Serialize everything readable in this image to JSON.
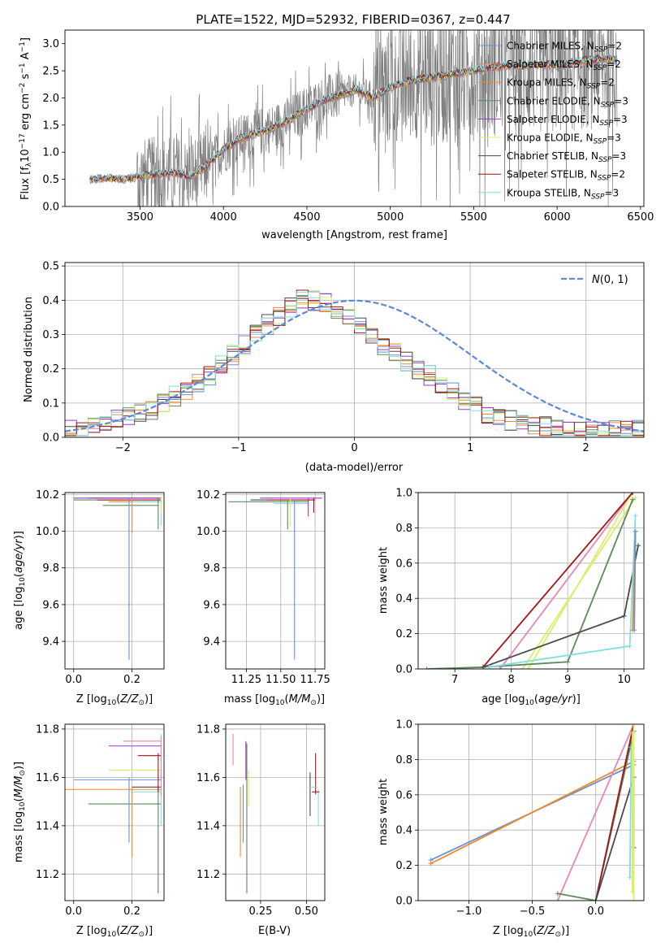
{
  "title": "PLATE=1522, MJD=52932, FIBERID=0367, z=0.447",
  "colors": {
    "chabrier_miles": "#6b8fd6",
    "salpeter_miles": "#e0876a",
    "kroupa_miles": "#f08a24",
    "chabrier_elodie": "#5b8a5b",
    "salpeter_elodie": "#9c38c7",
    "kroupa_elodie": "#d9ef6a",
    "chabrier_stelib": "#4a4a4a",
    "salpeter_stelib": "#a0151a",
    "kroupa_stelib": "#83dede",
    "data": "#808080",
    "normal": "#5b88d9",
    "pink": "#e884b8",
    "lime": "#d9ef6a"
  },
  "chart_data": [
    {
      "type": "line",
      "xlabel": "wavelength [Angstrom, rest frame]",
      "ylabel": "Flux [f_λ10^-17 erg cm^-2 s^-1 A^-1]",
      "xlim": [
        3050,
        6520
      ],
      "ylim": [
        0,
        3.25
      ],
      "xticks": [
        3500,
        4000,
        4500,
        5000,
        5500,
        6000,
        6500
      ],
      "yticks": [
        0.0,
        0.5,
        1.0,
        1.5,
        2.0,
        2.5,
        3.0
      ],
      "grid": false,
      "legend_position": "top-right",
      "legend": [
        "Chabrier MILES, N_SSP=2",
        "Salpeter MILES, N_SSP=2",
        "Kroupa MILES, N_SSP=2",
        "Chabrier ELODIE, N_SSP=3",
        "Salpeter ELODIE, N_SSP=3",
        "Kroupa ELODIE, N_SSP=3",
        "Chabrier STELIB, N_SSP=3",
        "Salpeter STELIB, N_SSP=2",
        "Kroupa STELIB, N_SSP=3"
      ],
      "model_continuum": {
        "x": [
          3200,
          3300,
          3400,
          3500,
          3600,
          3700,
          3800,
          3900,
          4000,
          4100,
          4200,
          4300,
          4400,
          4500,
          4600,
          4700,
          4800,
          4900,
          5000,
          5100,
          5200,
          5300,
          5400,
          5500,
          5600,
          5700,
          5800,
          5900,
          6000,
          6100,
          6200,
          6300,
          6350
        ],
        "y": [
          0.5,
          0.52,
          0.5,
          0.55,
          0.6,
          0.62,
          0.55,
          0.75,
          1.05,
          1.25,
          1.35,
          1.45,
          1.6,
          1.8,
          1.95,
          2.05,
          2.15,
          2.0,
          2.2,
          2.3,
          2.35,
          2.4,
          2.45,
          2.5,
          2.55,
          2.6,
          2.6,
          2.62,
          2.6,
          2.65,
          2.7,
          2.72,
          2.7
        ]
      }
    },
    {
      "type": "line",
      "xlabel": "(data-model)/error",
      "ylabel": "Normed distribution",
      "xlim": [
        -2.5,
        2.5
      ],
      "ylim": [
        0,
        0.51
      ],
      "xticks": [
        -2,
        -1,
        0,
        1,
        2
      ],
      "yticks": [
        0.0,
        0.1,
        0.2,
        0.3,
        0.4,
        0.5
      ],
      "grid": true,
      "legend_position": "top-right",
      "legend": [
        "N(0,1)"
      ],
      "histogram_bin_width": 0.1,
      "histogram_center": [
        0.02,
        0.02,
        0.03,
        0.04,
        0.05,
        0.06,
        0.07,
        0.08,
        0.1,
        0.12,
        0.14,
        0.16,
        0.18,
        0.21,
        0.24,
        0.27,
        0.3,
        0.33,
        0.35,
        0.38,
        0.4,
        0.4,
        0.39,
        0.37,
        0.35,
        0.33,
        0.3,
        0.27,
        0.25,
        0.22,
        0.2,
        0.18,
        0.15,
        0.13,
        0.11,
        0.09,
        0.07,
        0.06,
        0.05,
        0.04,
        0.03,
        0.03,
        0.02,
        0.02,
        0.02,
        0.02,
        0.02,
        0.02,
        0.02,
        0.02
      ]
    },
    {
      "type": "scatter",
      "xlabel": "Z [log10(Z/Z⊙)]",
      "ylabel": "age [log10(age/yr)]",
      "xlim": [
        -0.03,
        0.31
      ],
      "ylim": [
        9.25,
        10.21
      ],
      "xticks": [
        0.0,
        0.2
      ],
      "yticks": [
        9.4,
        9.6,
        9.8,
        10.0,
        10.2
      ],
      "grid": true
    },
    {
      "type": "scatter",
      "xlabel": "mass [log10(M/M⊙)]",
      "ylabel": "",
      "xlim": [
        11.1,
        11.82
      ],
      "ylim": [
        9.25,
        10.21
      ],
      "xticks": [
        11.25,
        11.5,
        11.75
      ],
      "yticks": [
        9.4,
        9.6,
        9.8,
        10.0,
        10.2
      ],
      "grid": true
    },
    {
      "type": "line",
      "xlabel": "age [log10(age/yr)]",
      "ylabel": "mass weight",
      "xlim": [
        6.35,
        10.35
      ],
      "ylim": [
        0,
        1.0
      ],
      "xticks": [
        7,
        8,
        9,
        10
      ],
      "yticks": [
        0.0,
        0.2,
        0.4,
        0.6,
        0.8,
        1.0
      ],
      "grid": true
    },
    {
      "type": "scatter",
      "xlabel": "Z [log10(Z/Z⊙)]",
      "ylabel": "mass [log10(M/M⊙)]",
      "xlim": [
        -0.03,
        0.31
      ],
      "ylim": [
        11.09,
        11.82
      ],
      "xticks": [
        0.0,
        0.2
      ],
      "yticks": [
        11.2,
        11.4,
        11.6,
        11.8
      ],
      "grid": true
    },
    {
      "type": "scatter",
      "xlabel": "E(B-V)",
      "ylabel": "",
      "xlim": [
        0.06,
        0.6
      ],
      "ylim": [
        11.09,
        11.82
      ],
      "xticks": [
        0.25,
        0.5
      ],
      "yticks": [
        11.2,
        11.4,
        11.6,
        11.8
      ],
      "grid": true
    },
    {
      "type": "line",
      "xlabel": "Z [log10(Z/Z⊙)]",
      "ylabel": "mass weight",
      "xlim": [
        -1.4,
        0.38
      ],
      "ylim": [
        0,
        1.0
      ],
      "xticks": [
        -1.0,
        -0.5,
        0.0
      ],
      "yticks": [
        0.0,
        0.2,
        0.4,
        0.6,
        0.8,
        1.0
      ],
      "grid": true
    }
  ]
}
